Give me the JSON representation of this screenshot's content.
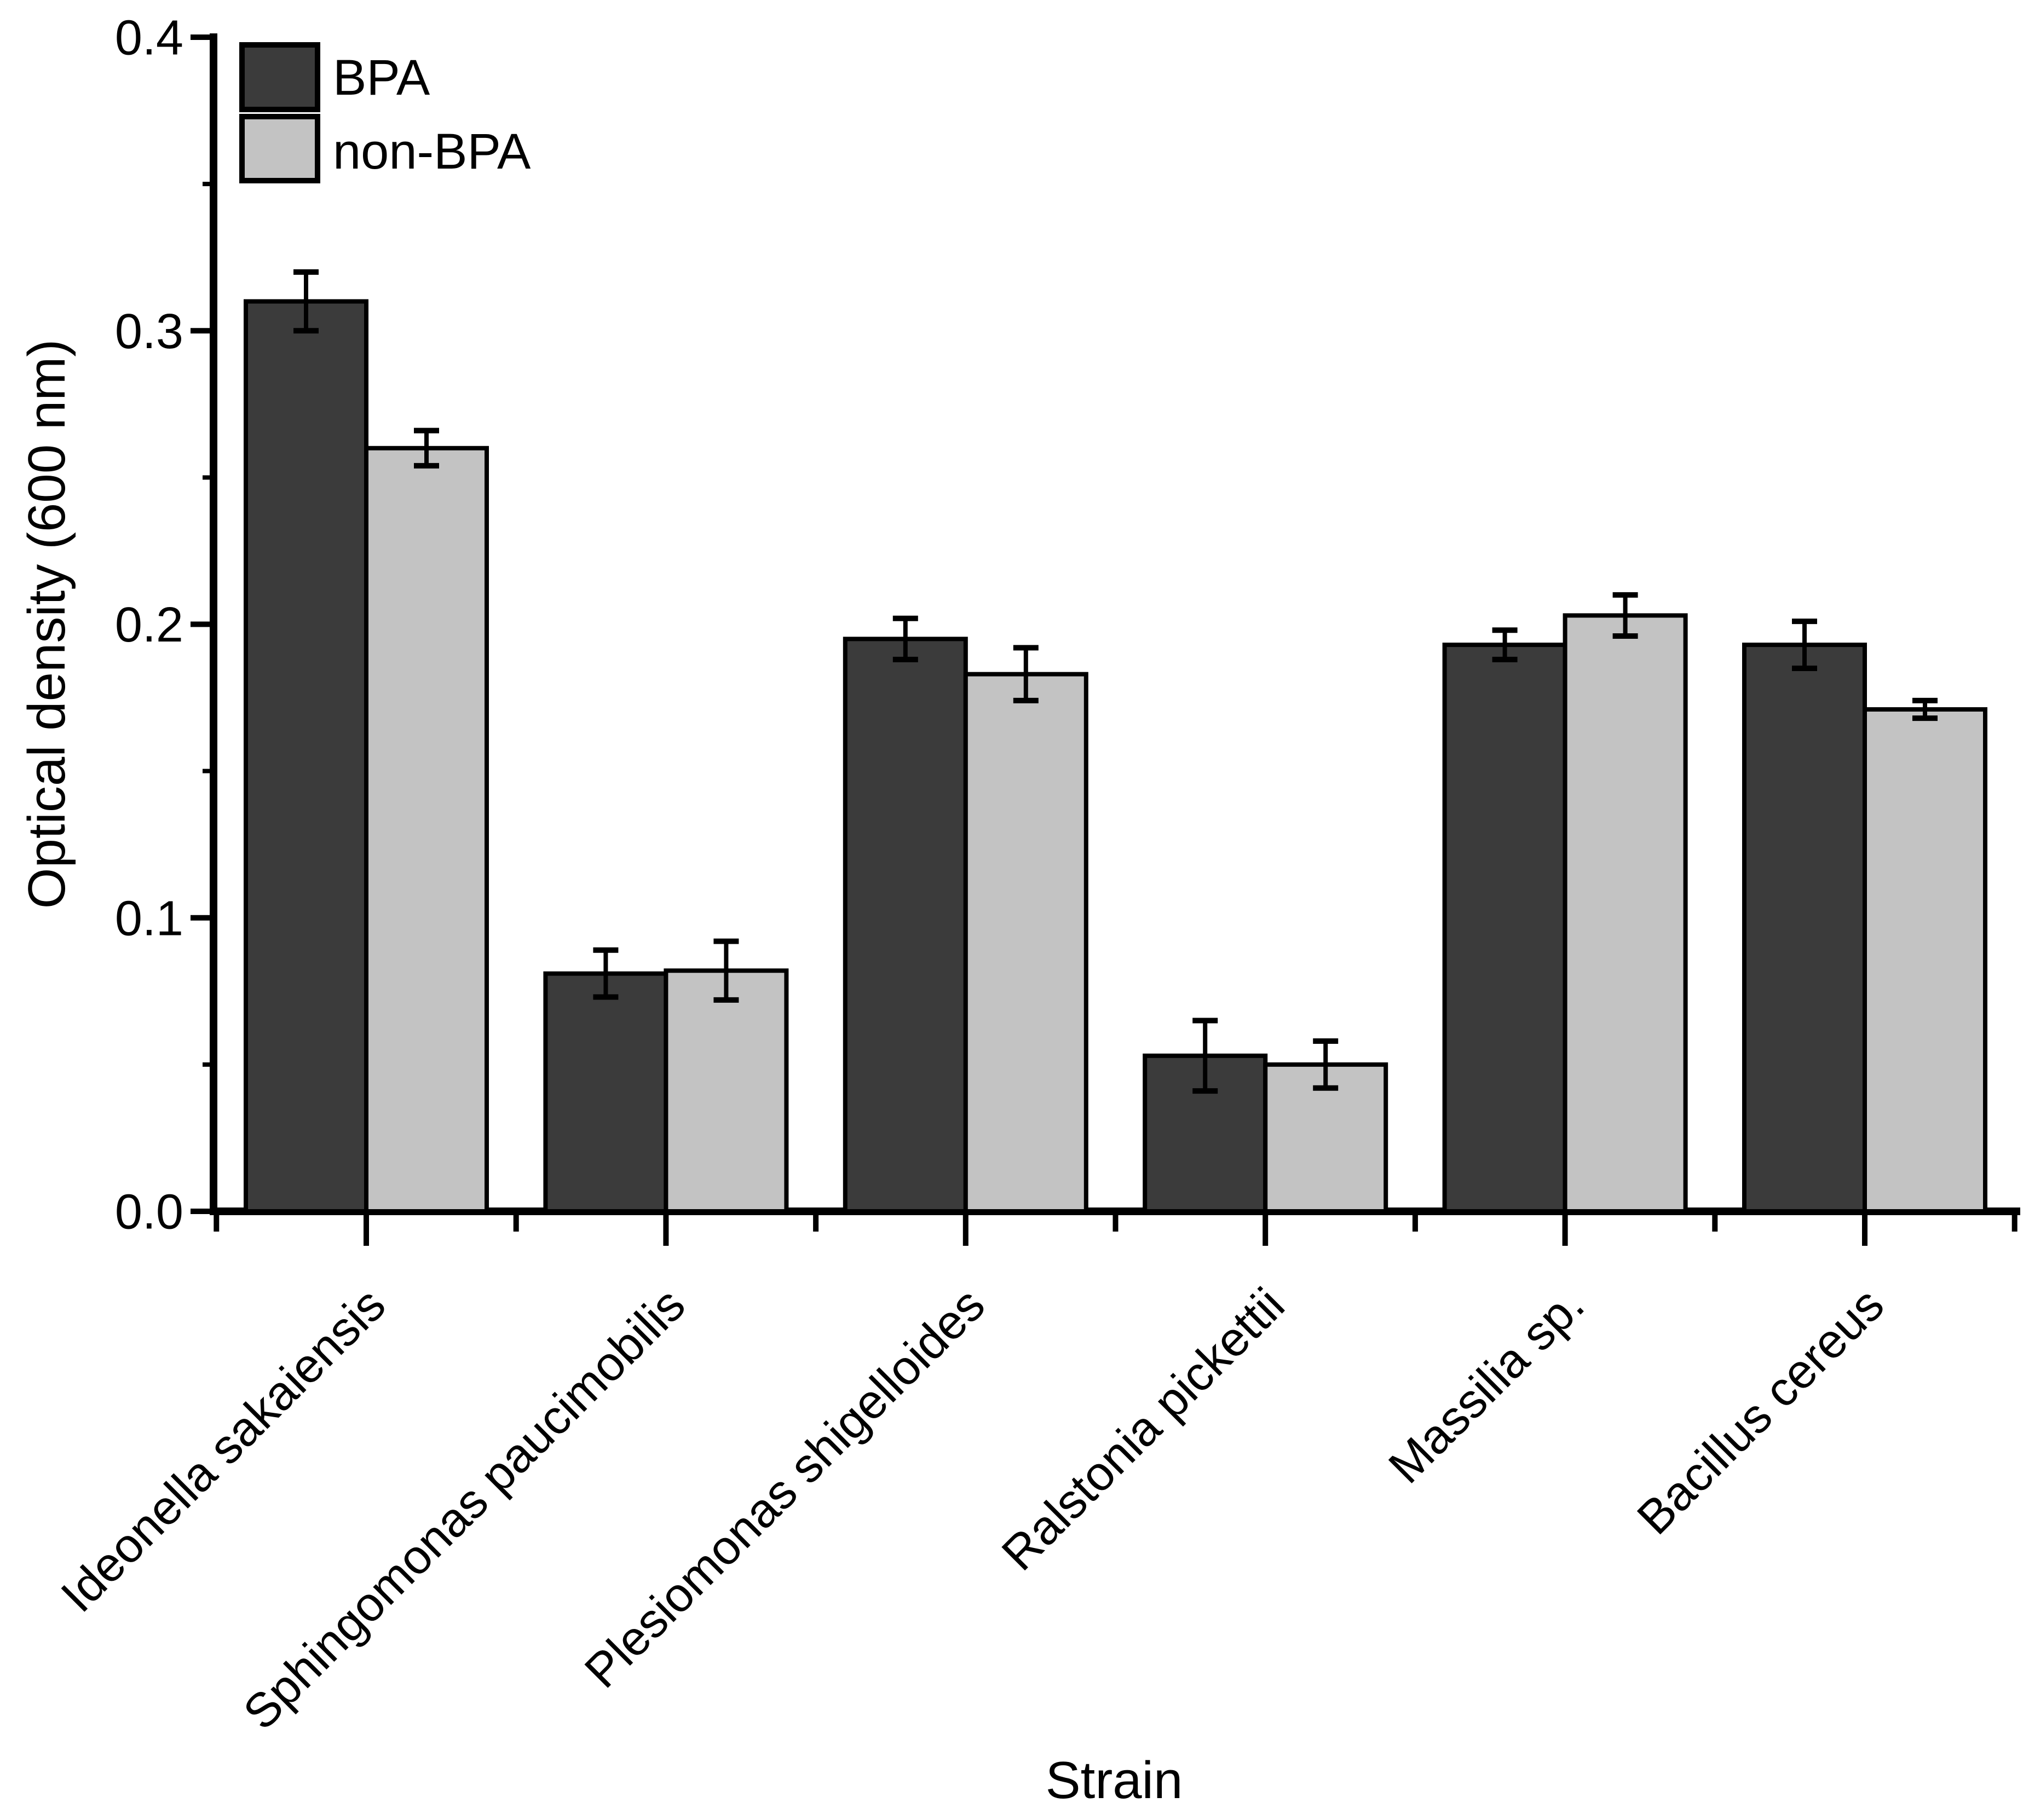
{
  "chart_data": {
    "type": "bar",
    "title": "",
    "xlabel": "Strain",
    "ylabel": "Optical density (600 nm)",
    "ylim": [
      0.0,
      0.4
    ],
    "y_major_tick_step": 0.1,
    "y_minor_tick_step": 0.05,
    "y_tick_labels": [
      "0.0",
      "0.1",
      "0.2",
      "0.3",
      "0.4"
    ],
    "grid": "off",
    "legend_position": "top-left-inside",
    "bar_outline_color": "#000000",
    "error_bar_color": "#000000",
    "categories": [
      "Ideonella sakaiensis",
      "Sphingomonas paucimobilis",
      "Plesiomonas shigelloides",
      "Ralstonia pickettii",
      "Massilia sp.",
      "Bacillus cereus"
    ],
    "series": [
      {
        "name": "BPA",
        "color": "#3b3b3b",
        "values": [
          0.31,
          0.081,
          0.195,
          0.053,
          0.193,
          0.193
        ],
        "errors": [
          0.01,
          0.008,
          0.007,
          0.012,
          0.005,
          0.008
        ]
      },
      {
        "name": "non-BPA",
        "color": "#c3c3c3",
        "values": [
          0.26,
          0.082,
          0.183,
          0.05,
          0.203,
          0.171
        ],
        "errors": [
          0.006,
          0.01,
          0.009,
          0.008,
          0.007,
          0.003
        ]
      }
    ]
  }
}
